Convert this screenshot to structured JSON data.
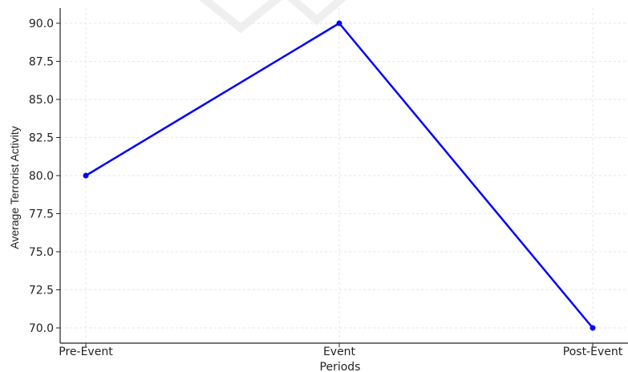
{
  "chart_data": {
    "type": "line",
    "title": "",
    "xlabel": "Periods",
    "ylabel": "Average Terrorist Activity",
    "categories": [
      "Pre-Event",
      "Event",
      "Post-Event"
    ],
    "series": [
      {
        "values": [
          80,
          90,
          70
        ],
        "color": "#0000ff"
      }
    ],
    "ylim": [
      69,
      91
    ],
    "yticks": [
      "70.0",
      "72.5",
      "75.0",
      "77.5",
      "80.0",
      "82.5",
      "85.0",
      "87.5",
      "90.0"
    ],
    "grid": true,
    "legend": "none"
  }
}
